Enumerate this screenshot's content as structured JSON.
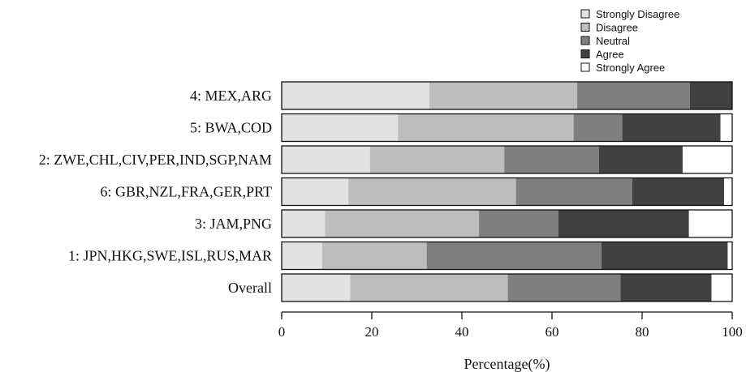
{
  "chart_data": {
    "type": "bar",
    "orientation": "horizontal",
    "stacked": true,
    "xlabel": "Percentage(%)",
    "xlim": [
      0,
      100
    ],
    "xticks": [
      0,
      20,
      40,
      60,
      80,
      100
    ],
    "legend": "top-right",
    "grid": false,
    "categories": [
      "4: MEX,ARG",
      "5: BWA,COD",
      "2: ZWE,CHL,CIV,PER,IND,SGP,NAM",
      "6: GBR,NZL,FRA,GER,PRT",
      "3: JAM,PNG",
      "1: JPN,HKG,SWE,ISL,RUS,MAR",
      "Overall"
    ],
    "series": [
      {
        "name": "Strongly Disagree",
        "color": "#e2e2e2",
        "values": [
          32.8,
          25.8,
          19.6,
          14.8,
          9.6,
          9.0,
          15.2
        ]
      },
      {
        "name": "Disagree",
        "color": "#bdbdbd",
        "values": [
          32.8,
          39.0,
          29.8,
          37.2,
          34.2,
          23.2,
          35.0
        ]
      },
      {
        "name": "Neutral",
        "color": "#7f7f7f",
        "values": [
          25.0,
          10.8,
          21.0,
          25.8,
          17.6,
          38.8,
          25.0
        ]
      },
      {
        "name": "Agree",
        "color": "#414141",
        "values": [
          9.4,
          21.8,
          18.6,
          20.4,
          29.0,
          28.0,
          20.2
        ]
      },
      {
        "name": "Strongly Agree",
        "color": "#ffffff",
        "values": [
          0.0,
          2.6,
          11.0,
          1.8,
          9.6,
          1.0,
          4.6
        ]
      }
    ]
  }
}
